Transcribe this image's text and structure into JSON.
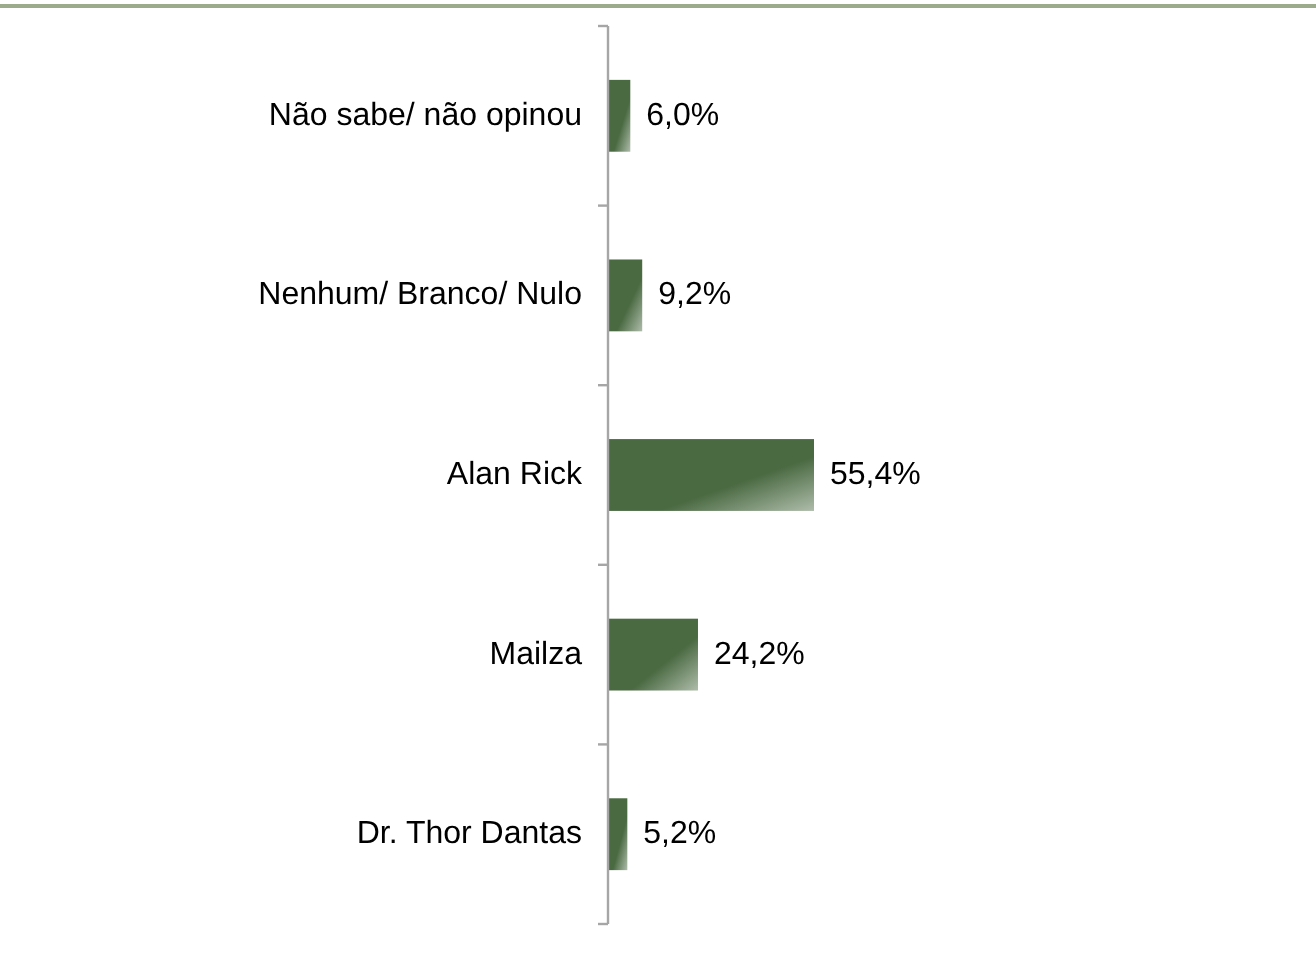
{
  "chart_data": {
    "type": "bar",
    "orientation": "horizontal",
    "categories": [
      "Não sabe/ não opinou",
      "Nenhum/ Branco/ Nulo",
      "Alan Rick",
      "Mailza",
      "Dr. Thor Dantas"
    ],
    "values": [
      6.0,
      9.2,
      55.4,
      24.2,
      5.2
    ],
    "color": "#4a6a42",
    "value_labels": [
      "6,0%",
      "9,2%",
      "55,4%",
      "24,2%",
      "5,2%"
    ]
  }
}
